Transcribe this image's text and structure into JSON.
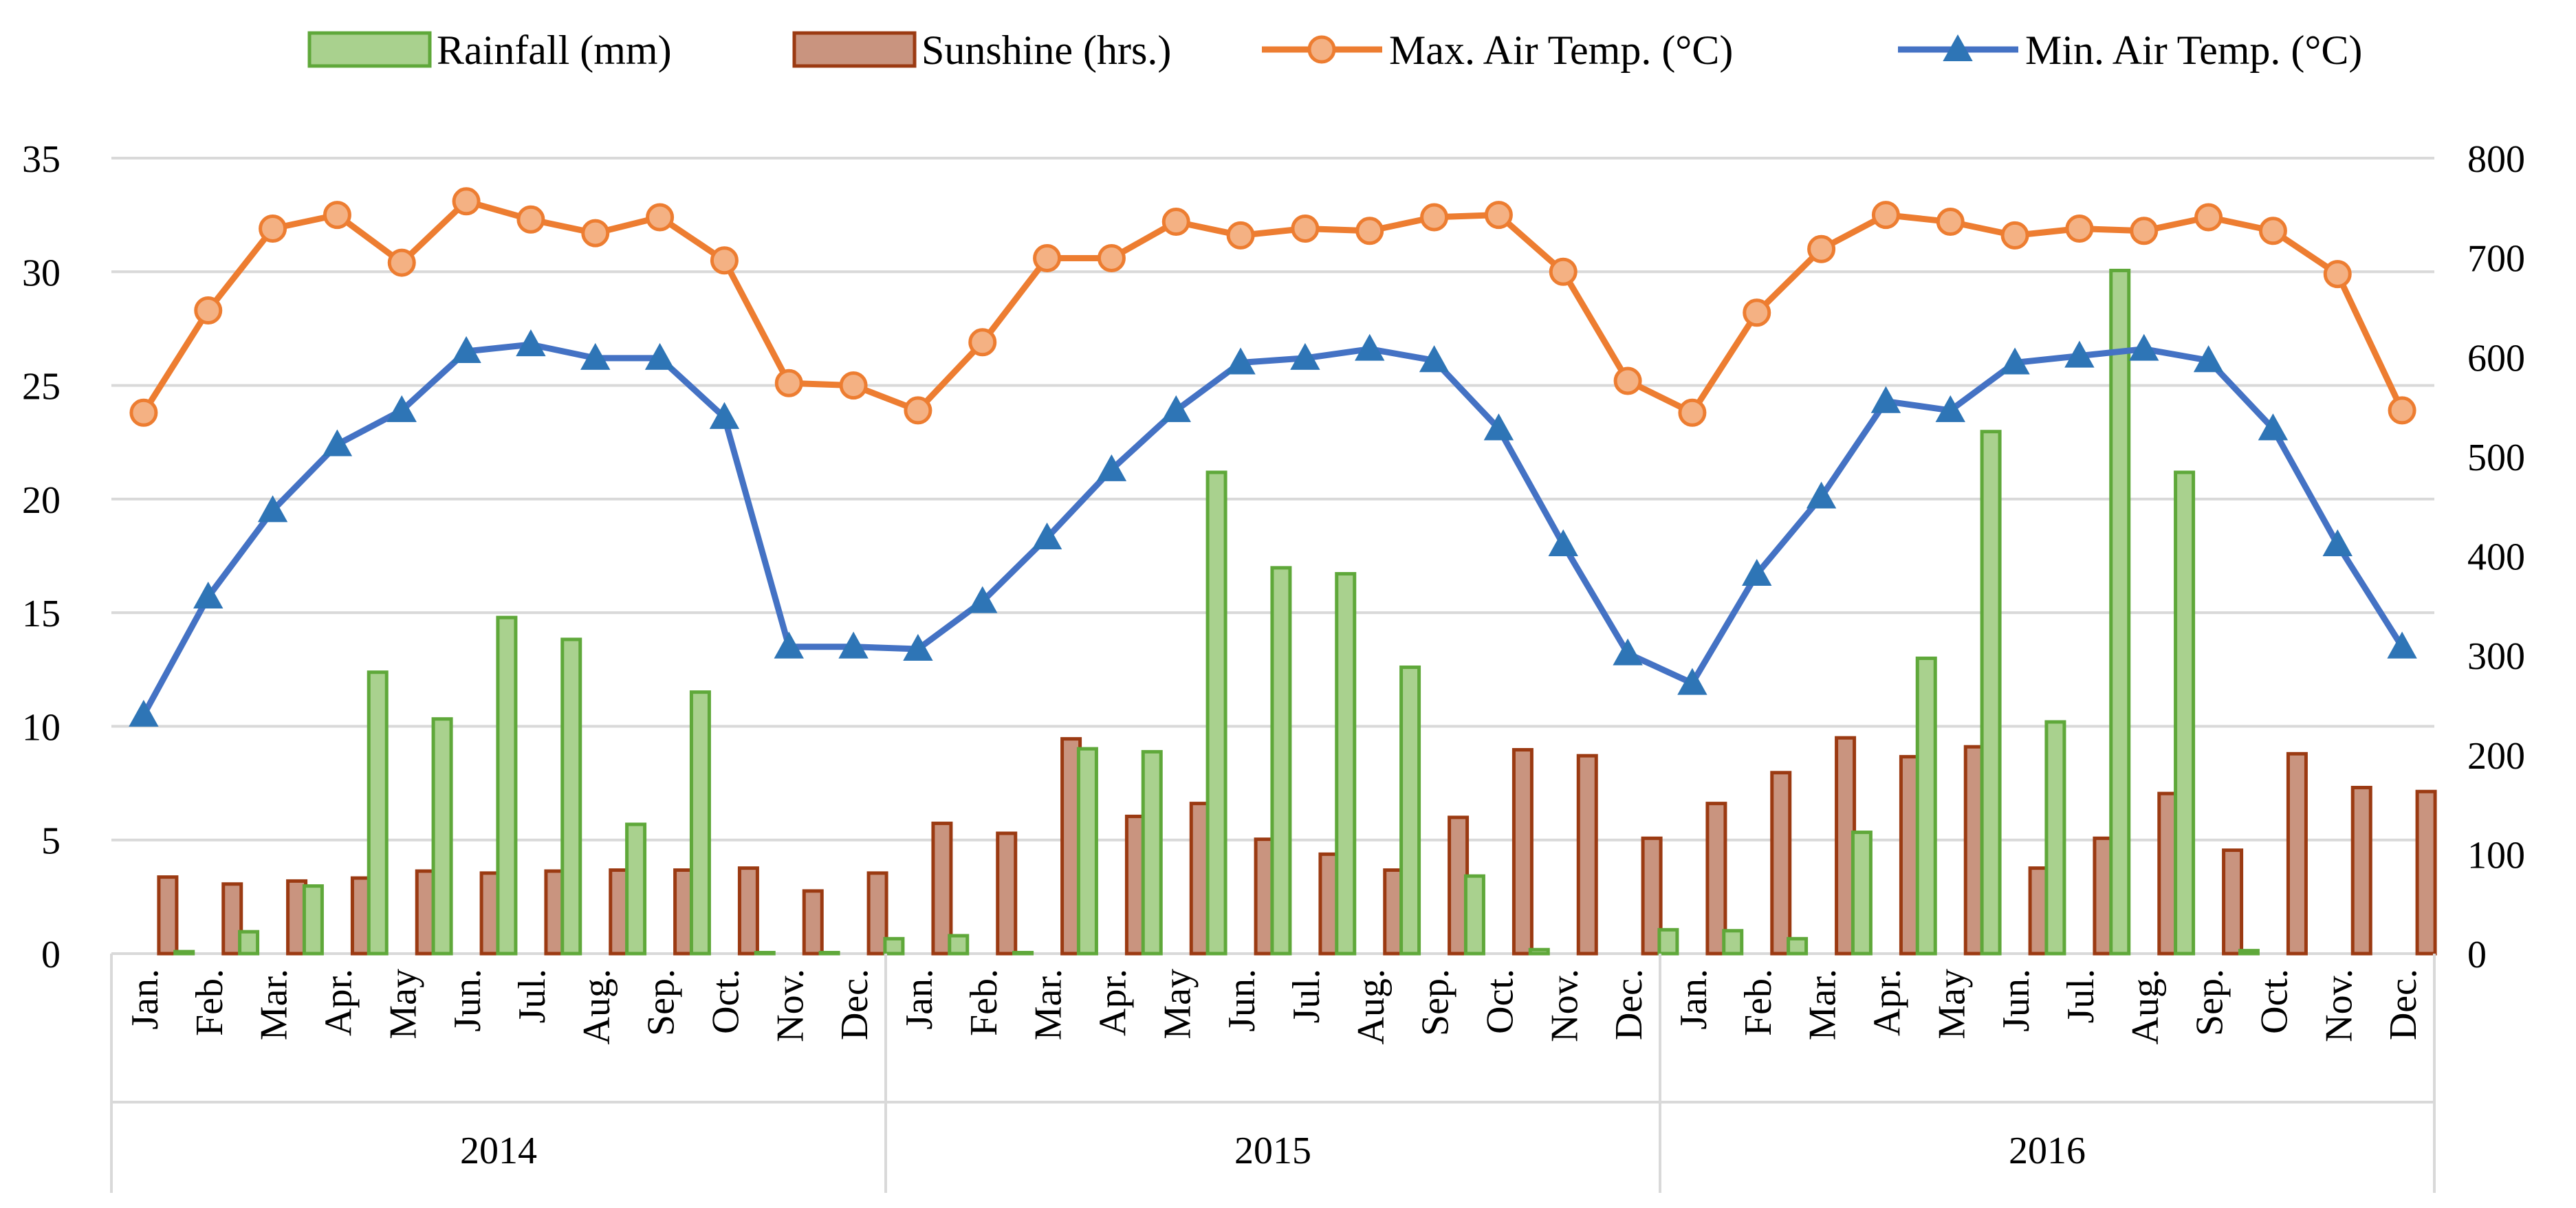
{
  "chart_data": {
    "type": "bar-line-combo",
    "title": "",
    "legend": {
      "placement": "top",
      "entries": [
        {
          "key": "rain",
          "label": "Rainfall (mm)",
          "kind": "bar",
          "fill": "#a9d18e",
          "stroke": "#5fa83a"
        },
        {
          "key": "sun",
          "label": "Sunshine (hrs.)",
          "kind": "bar",
          "fill": "#c9947f",
          "stroke": "#9b3a12"
        },
        {
          "key": "tmax",
          "label": "Max. Air Temp. (°C)",
          "kind": "line",
          "color": "#ed7d31",
          "marker": "circle",
          "marker_fill": "#f4b183"
        },
        {
          "key": "tmin",
          "label": "Min. Air Temp. (°C)",
          "kind": "line",
          "color": "#4472c4",
          "marker": "triangle",
          "marker_fill": "#2e75b6"
        }
      ]
    },
    "left_axis": {
      "min": 0,
      "max": 35,
      "step": 5,
      "ticks": [
        "0",
        "5",
        "10",
        "15",
        "20",
        "25",
        "30",
        "35"
      ],
      "series": [
        "rain_scaled",
        "tmax",
        "tmin"
      ]
    },
    "right_axis": {
      "min": 0,
      "max": 800,
      "step": 100,
      "ticks": [
        "0",
        "100",
        "200",
        "300",
        "400",
        "500",
        "600",
        "700",
        "800"
      ],
      "series": [
        "sun",
        "rain"
      ]
    },
    "groups": [
      "2014",
      "2015",
      "2016"
    ],
    "months": [
      "Jan.",
      "Feb.",
      "Mar.",
      "Apr.",
      "May",
      "Jun.",
      "Jul.",
      "Aug.",
      "Sep.",
      "Oct.",
      "Nov.",
      "Dec."
    ],
    "series": [
      {
        "key": "rain",
        "name": "Rainfall (mm)",
        "axis": "right",
        "values": [
          0,
          2,
          22,
          68,
          283,
          236,
          338,
          316,
          130,
          263,
          1,
          1,
          15,
          18,
          1,
          206,
          203,
          484,
          388,
          382,
          288,
          78,
          4,
          0,
          24,
          23,
          15,
          122,
          297,
          525,
          233,
          687,
          484,
          3,
          0,
          0
        ]
      },
      {
        "key": "sun",
        "name": "Sunshine (hrs.)",
        "axis": "right",
        "values": [
          77,
          70,
          73,
          76,
          83,
          81,
          83,
          84,
          84,
          86,
          63,
          81,
          131,
          121,
          216,
          138,
          151,
          115,
          100,
          84,
          137,
          205,
          199,
          116,
          151,
          182,
          217,
          198,
          208,
          86,
          116,
          161,
          104,
          201,
          167,
          163
        ]
      },
      {
        "key": "tmax",
        "name": "Max. Air Temp. (°C)",
        "axis": "left",
        "values": [
          23.8,
          28.3,
          31.9,
          32.5,
          30.4,
          33.1,
          32.3,
          31.7,
          32.4,
          30.5,
          25.1,
          25.0,
          23.9,
          26.9,
          30.6,
          30.6,
          32.2,
          31.6,
          31.9,
          31.8,
          32.4,
          32.5,
          30.0,
          25.2,
          23.8,
          28.2,
          31.0,
          32.5,
          32.2,
          31.6,
          31.9,
          31.8,
          32.4,
          31.8,
          29.9,
          23.9
        ]
      },
      {
        "key": "tmin",
        "name": "Min. Air Temp. (°C)",
        "axis": "left",
        "values": [
          10.5,
          15.7,
          19.5,
          22.4,
          23.9,
          26.5,
          26.8,
          26.2,
          26.2,
          23.6,
          13.5,
          13.5,
          13.4,
          15.5,
          18.3,
          21.3,
          23.9,
          26.0,
          26.2,
          26.6,
          26.1,
          23.1,
          18.0,
          13.2,
          11.9,
          16.7,
          20.1,
          24.3,
          23.9,
          26.0,
          26.3,
          26.6,
          26.1,
          23.1,
          18.0,
          13.5
        ]
      }
    ]
  }
}
